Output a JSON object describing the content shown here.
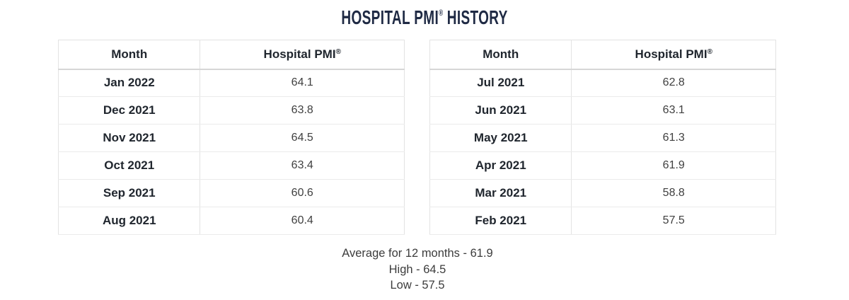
{
  "title": {
    "main": "HOSPITAL PMI",
    "reg": "®",
    "rest": " HISTORY"
  },
  "tables": [
    {
      "headers": {
        "month": "Month",
        "pmi": "Hospital PMI",
        "reg": "®"
      },
      "rows": [
        {
          "month": "Jan 2022",
          "value": "64.1"
        },
        {
          "month": "Dec 2021",
          "value": "63.8"
        },
        {
          "month": "Nov 2021",
          "value": "64.5"
        },
        {
          "month": "Oct 2021",
          "value": "63.4"
        },
        {
          "month": "Sep 2021",
          "value": "60.6"
        },
        {
          "month": "Aug 2021",
          "value": "60.4"
        }
      ]
    },
    {
      "headers": {
        "month": "Month",
        "pmi": "Hospital PMI",
        "reg": "®"
      },
      "rows": [
        {
          "month": "Jul 2021",
          "value": "62.8"
        },
        {
          "month": "Jun 2021",
          "value": "63.1"
        },
        {
          "month": "May 2021",
          "value": "61.3"
        },
        {
          "month": "Apr 2021",
          "value": "61.9"
        },
        {
          "month": "Mar 2021",
          "value": "58.8"
        },
        {
          "month": "Feb 2021",
          "value": "57.5"
        }
      ]
    }
  ],
  "summary": {
    "average": "Average for 12 months - 61.9",
    "high": "High - 64.5",
    "low": "Low - 57.5"
  },
  "colors": {
    "title": "#1f2a44",
    "bold_text": "#20262e",
    "value_text": "#404040",
    "border": "#e3e3e3"
  },
  "chart_data": {
    "type": "table",
    "title": "Hospital PMI History",
    "columns": [
      "Month",
      "Hospital PMI"
    ],
    "rows": [
      [
        "Jan 2022",
        64.1
      ],
      [
        "Dec 2021",
        63.8
      ],
      [
        "Nov 2021",
        64.5
      ],
      [
        "Oct 2021",
        63.4
      ],
      [
        "Sep 2021",
        60.6
      ],
      [
        "Aug 2021",
        60.4
      ],
      [
        "Jul 2021",
        62.8
      ],
      [
        "Jun 2021",
        63.1
      ],
      [
        "May 2021",
        61.3
      ],
      [
        "Apr 2021",
        61.9
      ],
      [
        "Mar 2021",
        58.8
      ],
      [
        "Feb 2021",
        57.5
      ]
    ],
    "summary": {
      "average_12_months": 61.9,
      "high": 64.5,
      "low": 57.5
    }
  }
}
